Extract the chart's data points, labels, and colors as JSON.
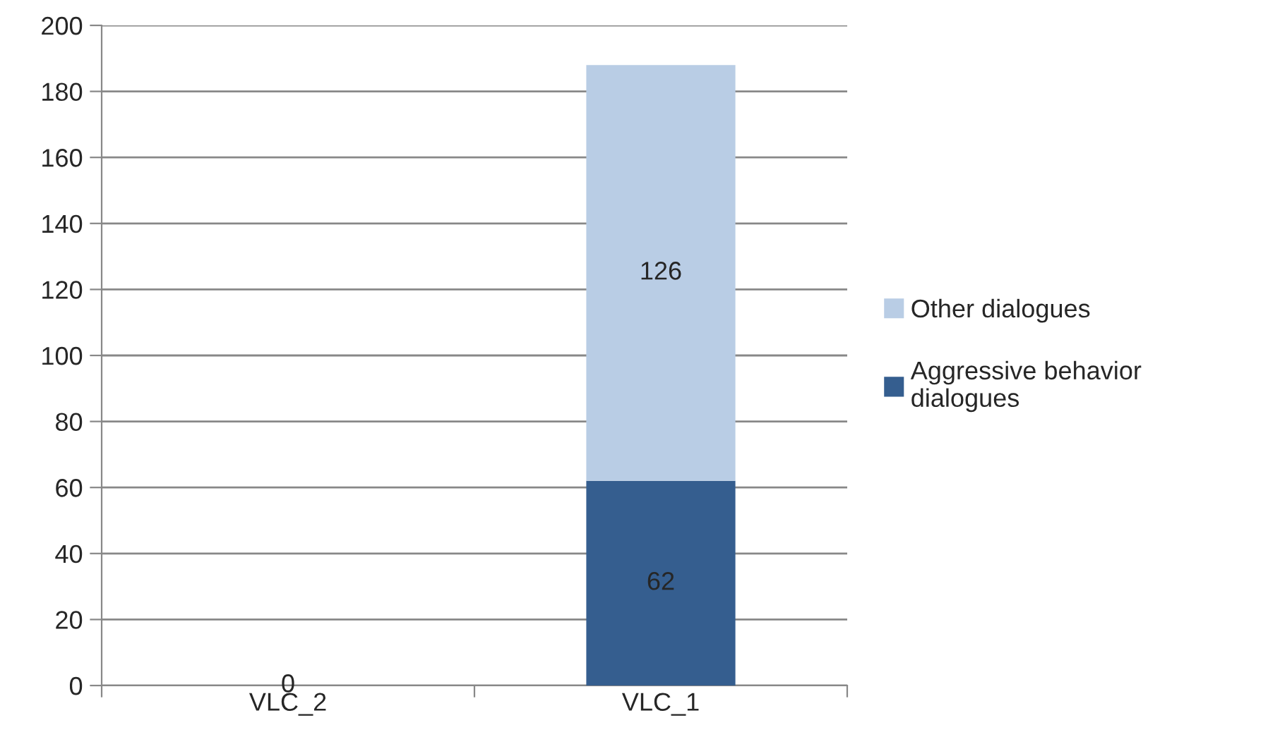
{
  "chart_data": {
    "type": "bar",
    "stacked": true,
    "categories": [
      "VLC_2",
      "VLC_1"
    ],
    "series": [
      {
        "name": "Aggressive behavior dialogues",
        "color": "#355e8f",
        "values": [
          0,
          62
        ],
        "value_labels": [
          "0",
          "62"
        ]
      },
      {
        "name": "Other dialogues",
        "color": "#b9cde5",
        "values": [
          0,
          126
        ],
        "value_labels": [
          null,
          "126"
        ]
      }
    ],
    "ylim": [
      0,
      200
    ],
    "yticks": [
      0,
      20,
      40,
      60,
      80,
      100,
      120,
      140,
      160,
      180,
      200
    ],
    "grid": "y",
    "legend": "right"
  }
}
